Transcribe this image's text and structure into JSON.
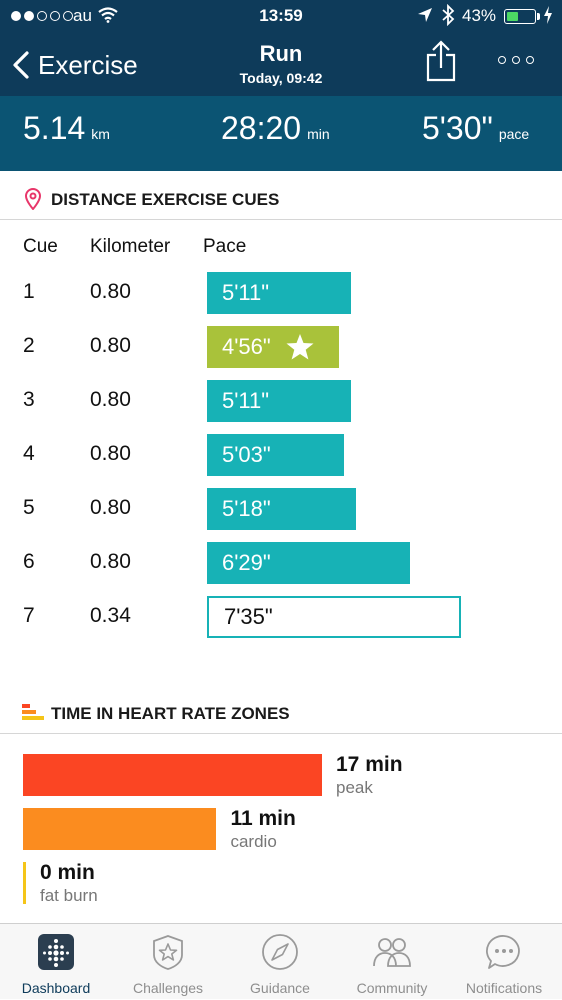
{
  "status_bar": {
    "carrier": "au",
    "time": "13:59",
    "battery_pct": "43%",
    "battery_level": 0.43
  },
  "nav": {
    "back_label": "Exercise",
    "title": "Run",
    "subtitle": "Today, 09:42"
  },
  "summary": {
    "distance": {
      "value": "5.14",
      "unit": "km"
    },
    "duration": {
      "value": "28:20",
      "unit": "min"
    },
    "pace": {
      "value": "5'30\"",
      "unit": "pace"
    }
  },
  "cues_section": {
    "title": "DISTANCE EXERCISE CUES",
    "headers": {
      "cue": "Cue",
      "km": "Kilometer",
      "pace": "Pace"
    },
    "rows": [
      {
        "cue": "1",
        "km": "0.80",
        "pace": "5'11\"",
        "pace_sec": 311,
        "style": "teal"
      },
      {
        "cue": "2",
        "km": "0.80",
        "pace": "4'56\"",
        "pace_sec": 296,
        "style": "green",
        "best": true
      },
      {
        "cue": "3",
        "km": "0.80",
        "pace": "5'11\"",
        "pace_sec": 311,
        "style": "teal"
      },
      {
        "cue": "4",
        "km": "0.80",
        "pace": "5'03\"",
        "pace_sec": 303,
        "style": "teal"
      },
      {
        "cue": "5",
        "km": "0.80",
        "pace": "5'18\"",
        "pace_sec": 318,
        "style": "teal"
      },
      {
        "cue": "6",
        "km": "0.80",
        "pace": "6'29\"",
        "pace_sec": 389,
        "style": "teal"
      },
      {
        "cue": "7",
        "km": "0.34",
        "pace": "7'35\"",
        "pace_sec": 455,
        "style": "outline"
      }
    ]
  },
  "zones_section": {
    "title": "TIME IN HEART RATE ZONES",
    "zones": [
      {
        "minutes": 17,
        "value": "17 min",
        "name": "peak",
        "color": "#fb4523"
      },
      {
        "minutes": 11,
        "value": "11 min",
        "name": "cardio",
        "color": "#fb8c1f"
      },
      {
        "minutes": 0,
        "value": "0 min",
        "name": "fat burn",
        "color": "#f5c518"
      }
    ]
  },
  "tabs": [
    {
      "label": "Dashboard",
      "icon": "dashboard-icon",
      "active": true
    },
    {
      "label": "Challenges",
      "icon": "challenges-star-icon",
      "active": false
    },
    {
      "label": "Guidance",
      "icon": "guidance-compass-icon",
      "active": false
    },
    {
      "label": "Community",
      "icon": "community-people-icon",
      "active": false
    },
    {
      "label": "Notifications",
      "icon": "notifications-chat-icon",
      "active": false
    }
  ],
  "colors": {
    "header": "#0e3b5a",
    "summary": "#0b5473",
    "teal": "#17b2b6",
    "green": "#a9c23a",
    "pin": "#e8366a"
  }
}
